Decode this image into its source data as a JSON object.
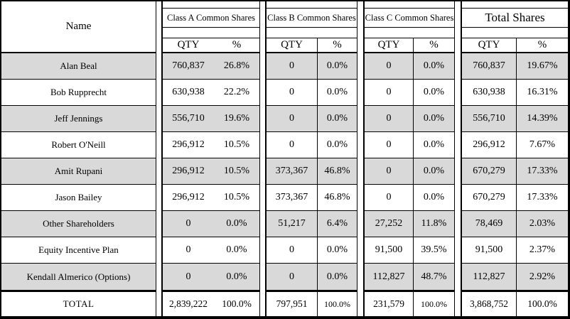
{
  "colors": {
    "shaded_row": "#D9D9D9",
    "border": "#000000",
    "background": "#FFFFFF"
  },
  "table": {
    "name_header": "Name",
    "col_labels": {
      "qty": "QTY",
      "pct": "%"
    },
    "sections": [
      {
        "title": "Class A Common Shares"
      },
      {
        "title": "Class B Common Shares"
      },
      {
        "title": "Class C Common Shares"
      },
      {
        "title": "Total Shares"
      }
    ],
    "rows": [
      {
        "name": "Alan Beal",
        "shaded": true,
        "cells": [
          [
            "760,837",
            "26.8%"
          ],
          [
            "0",
            "0.0%"
          ],
          [
            "0",
            "0.0%"
          ],
          [
            "760,837",
            "19.67%"
          ]
        ]
      },
      {
        "name": "Bob Rupprecht",
        "shaded": false,
        "cells": [
          [
            "630,938",
            "22.2%"
          ],
          [
            "0",
            "0.0%"
          ],
          [
            "0",
            "0.0%"
          ],
          [
            "630,938",
            "16.31%"
          ]
        ]
      },
      {
        "name": "Jeff Jennings",
        "shaded": true,
        "cells": [
          [
            "556,710",
            "19.6%"
          ],
          [
            "0",
            "0.0%"
          ],
          [
            "0",
            "0.0%"
          ],
          [
            "556,710",
            "14.39%"
          ]
        ]
      },
      {
        "name": "Robert O'Neill",
        "shaded": false,
        "cells": [
          [
            "296,912",
            "10.5%"
          ],
          [
            "0",
            "0.0%"
          ],
          [
            "0",
            "0.0%"
          ],
          [
            "296,912",
            "7.67%"
          ]
        ]
      },
      {
        "name": "Amit Rupani",
        "shaded": true,
        "cells": [
          [
            "296,912",
            "10.5%"
          ],
          [
            "373,367",
            "46.8%"
          ],
          [
            "0",
            "0.0%"
          ],
          [
            "670,279",
            "17.33%"
          ]
        ]
      },
      {
        "name": "Jason Bailey",
        "shaded": false,
        "cells": [
          [
            "296,912",
            "10.5%"
          ],
          [
            "373,367",
            "46.8%"
          ],
          [
            "0",
            "0.0%"
          ],
          [
            "670,279",
            "17.33%"
          ]
        ]
      },
      {
        "name": "Other Shareholders",
        "shaded": true,
        "cells": [
          [
            "0",
            "0.0%"
          ],
          [
            "51,217",
            "6.4%"
          ],
          [
            "27,252",
            "11.8%"
          ],
          [
            "78,469",
            "2.03%"
          ]
        ]
      },
      {
        "name": "Equity Incentive Plan",
        "shaded": false,
        "cells": [
          [
            "0",
            "0.0%"
          ],
          [
            "0",
            "0.0%"
          ],
          [
            "91,500",
            "39.5%"
          ],
          [
            "91,500",
            "2.37%"
          ]
        ]
      },
      {
        "name": "Kendall Almerico (Options)",
        "shaded": true,
        "cells": [
          [
            "0",
            "0.0%"
          ],
          [
            "0",
            "0.0%"
          ],
          [
            "112,827",
            "48.7%"
          ],
          [
            "112,827",
            "2.92%"
          ]
        ]
      }
    ],
    "total_row": {
      "name": "TOTAL",
      "cells": [
        [
          "2,839,222",
          "100.0%"
        ],
        [
          "797,951",
          "100.0%"
        ],
        [
          "231,579",
          "100.0%"
        ],
        [
          "3,868,752",
          "100.0%"
        ]
      ]
    }
  }
}
